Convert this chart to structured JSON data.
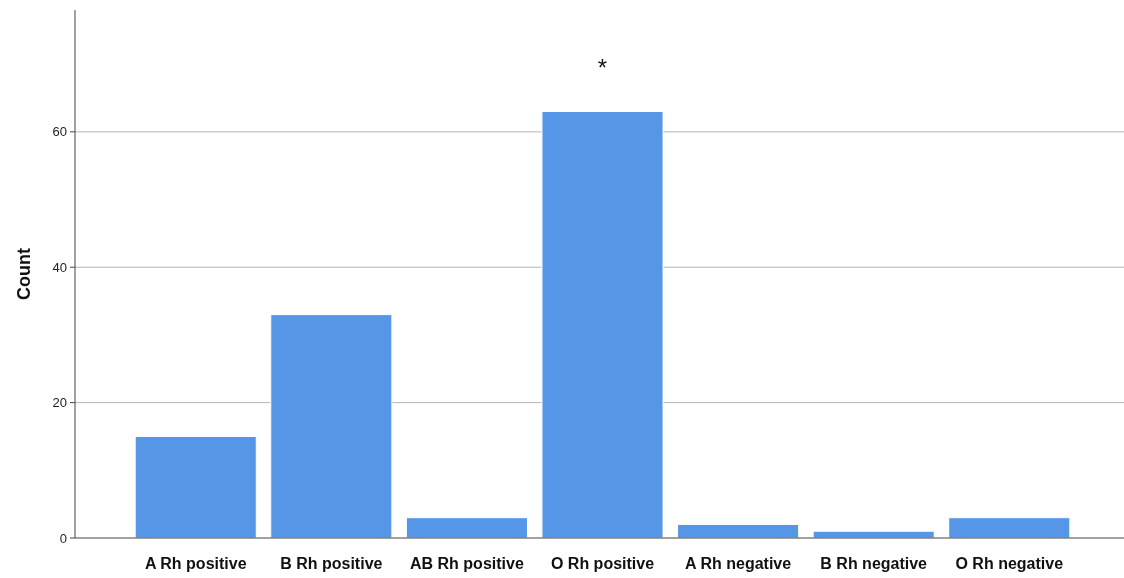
{
  "chart_data": {
    "type": "bar",
    "ylabel": "Count",
    "categories": [
      "A Rh positive",
      "B Rh positive",
      "AB Rh positive",
      "O Rh positive",
      "A Rh negative",
      "B Rh negative",
      "O Rh negative"
    ],
    "values": [
      15,
      33,
      3,
      63,
      2,
      1,
      3
    ],
    "color": "#5596e6",
    "ylim": [
      0,
      78
    ],
    "yticks": [
      0,
      20,
      40,
      60
    ],
    "grid": "y",
    "annotations": [
      "*"
    ]
  }
}
